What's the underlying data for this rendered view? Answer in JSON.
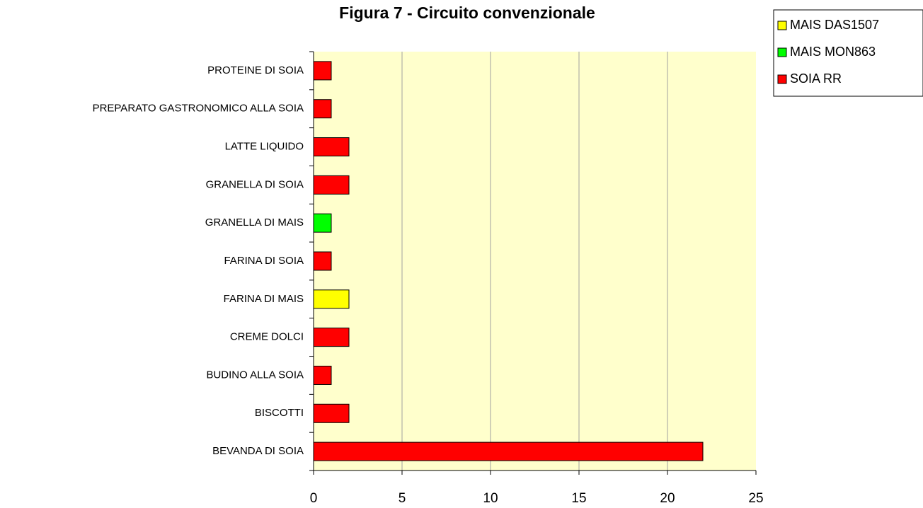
{
  "chart_data": {
    "type": "stacked_barh",
    "title": "Figura 7 - Circuito convenzionale",
    "categories": [
      "BEVANDA DI SOIA",
      "BISCOTTI",
      "BUDINO ALLA SOIA",
      "CREME DOLCI",
      "FARINA DI MAIS",
      "FARINA DI SOIA",
      "GRANELLA DI MAIS",
      "GRANELLA DI SOIA",
      "LATTE LIQUIDO",
      "PREPARATO GASTRONOMICO ALLA SOIA",
      "PROTEINE DI SOIA"
    ],
    "series": [
      {
        "name": "MAIS DAS1507",
        "color": "#ffff00",
        "values": [
          0,
          0,
          0,
          0,
          2,
          0,
          0,
          0,
          0,
          0,
          0
        ]
      },
      {
        "name": "MAIS MON863",
        "color": "#00ff00",
        "values": [
          0,
          0,
          0,
          0,
          0,
          0,
          1,
          0,
          0,
          0,
          0
        ]
      },
      {
        "name": "SOIA RR",
        "color": "#ff0000",
        "values": [
          22,
          2,
          1,
          2,
          0,
          1,
          0,
          2,
          2,
          1,
          1
        ]
      }
    ],
    "xlim": [
      0,
      25
    ],
    "xticks": [
      0,
      5,
      10,
      15,
      20,
      25
    ],
    "grid": true,
    "legend": "top-right"
  }
}
